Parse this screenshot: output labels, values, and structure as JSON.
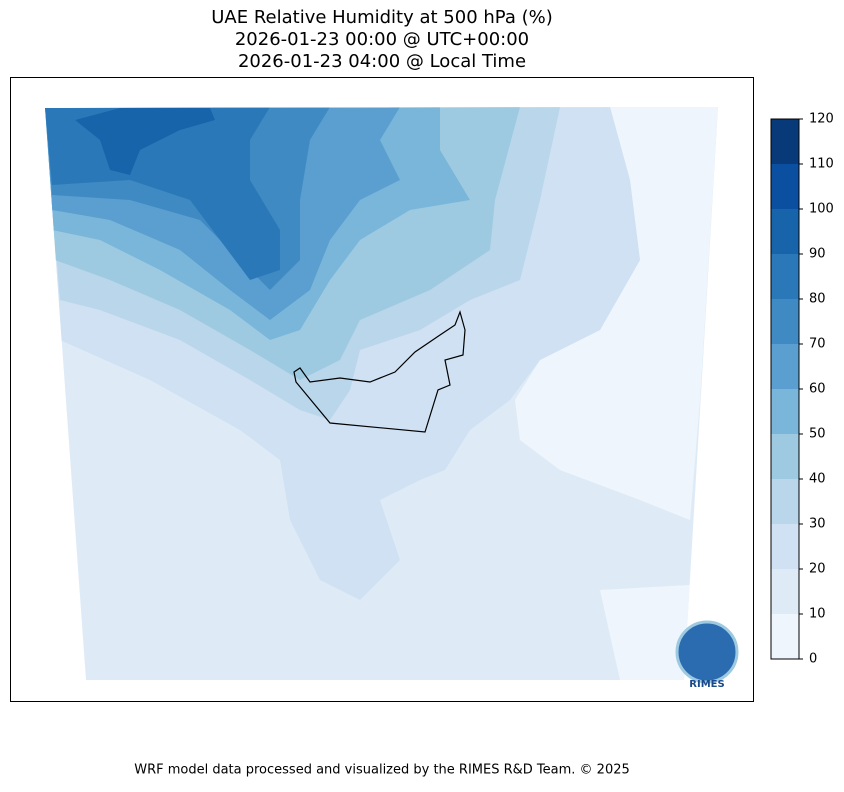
{
  "title": [
    "UAE Relative Humidity at 500 hPa (%)",
    "2026-01-23 00:00 @ UTC+00:00",
    "2026-01-23 04:00 @ Local Time"
  ],
  "colorbar": {
    "lim": [
      0,
      120
    ],
    "ticks": [
      0,
      10,
      20,
      30,
      40,
      50,
      60,
      70,
      80,
      90,
      100,
      110,
      120
    ],
    "colors": [
      "#eef5fc",
      "#deebf7",
      "#cfe1f2",
      "#b9d6eb",
      "#9dcae1",
      "#7ab6d9",
      "#5a9fcf",
      "#3f8ac3",
      "#2b78b9",
      "#1764ab",
      "#0b50a0",
      "#083a7a"
    ]
  },
  "logo": "RIMES",
  "footer": "WRF model data processed and visualized by the RIMES R&D Team. © 2025"
}
